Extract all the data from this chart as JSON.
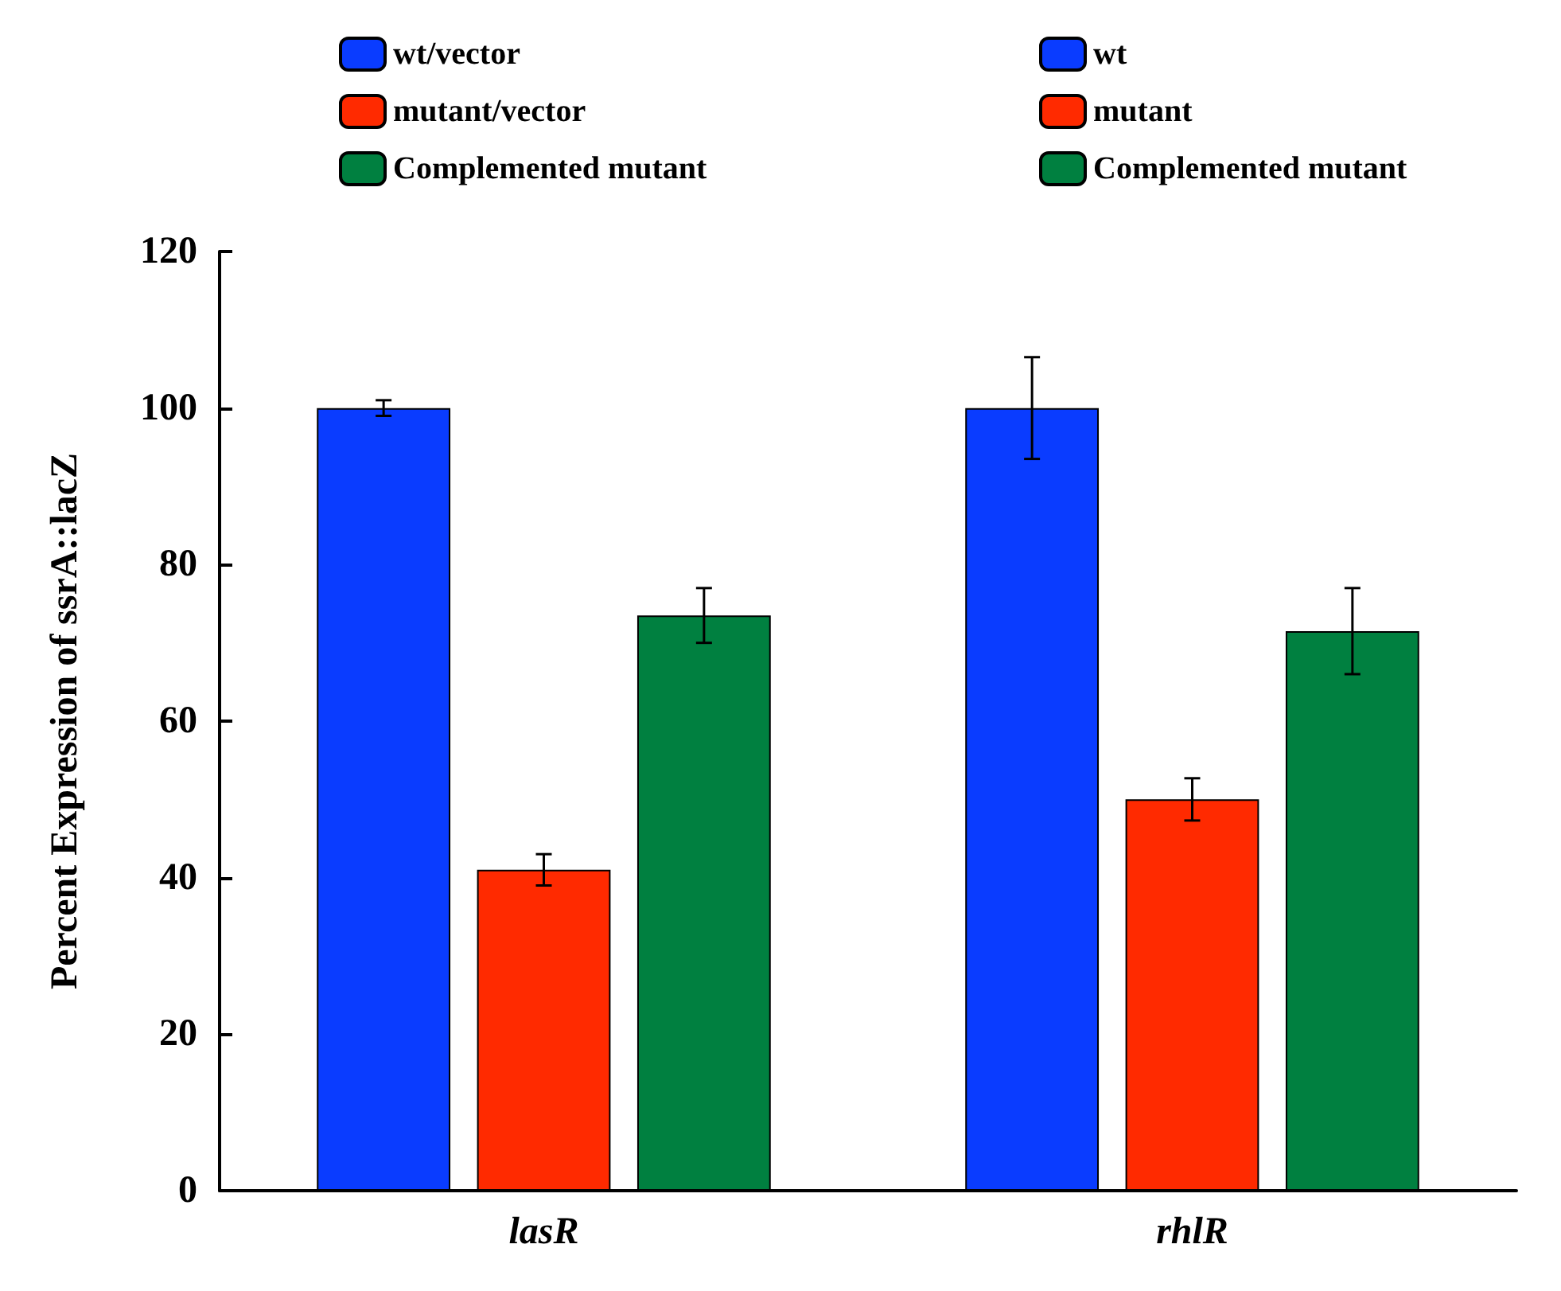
{
  "chart_data": {
    "type": "bar",
    "ylabel": "Percent Expression of ssrA::lacZ",
    "categories": [
      "lasR",
      "rhlR"
    ],
    "series": [
      {
        "name": "wt/vector",
        "color": "#0a3cff",
        "values": [
          100,
          null
        ],
        "errors": [
          1,
          null
        ]
      },
      {
        "name": "mutant/vector",
        "color": "#ff2a00",
        "values": [
          41,
          null
        ],
        "errors": [
          2,
          null
        ]
      },
      {
        "name": "Complemented mutant",
        "color": "#008040",
        "values": [
          73.5,
          null
        ],
        "errors": [
          3.5,
          null
        ]
      },
      {
        "name": "wt",
        "color": "#0a3cff",
        "values": [
          null,
          100
        ],
        "errors": [
          null,
          6.5
        ]
      },
      {
        "name": "mutant",
        "color": "#ff2a00",
        "values": [
          null,
          50
        ],
        "errors": [
          null,
          2.7
        ]
      },
      {
        "name": "Complemented mutant",
        "color": "#008040",
        "values": [
          null,
          71.5
        ],
        "errors": [
          null,
          5.5
        ]
      }
    ],
    "ylim": [
      0,
      120
    ],
    "yticks": [
      0,
      20,
      40,
      60,
      80,
      100,
      120
    ],
    "grid": false,
    "legend": "top"
  }
}
